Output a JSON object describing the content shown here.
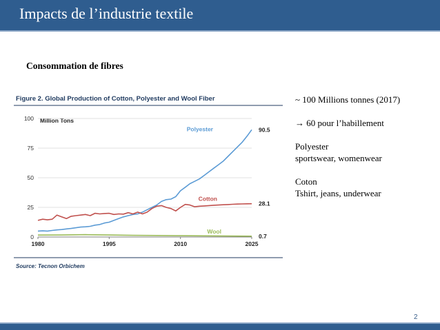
{
  "slide": {
    "title": "Impacts de l’industrie textile",
    "subtitle": "Consommation de fibres",
    "notes": [
      "~ 100 Millions tonnes (2017)",
      "→ 60 pour l’habillement",
      "Polyester",
      "sportswear, womenwear",
      "Coton",
      "Tshirt, jeans, underwear"
    ],
    "page_number": "2"
  },
  "colors": {
    "title_bar": "#2f5d8f",
    "polyester": "#5b9bd5",
    "cotton": "#c0504d",
    "wool": "#9bbb59"
  },
  "chart_data": {
    "type": "line",
    "title": "Figure 2. Global Production of Cotton, Polyester and Wool Fiber",
    "ylabel": "Million Tons",
    "source": "Source: Tecnon Orbichem",
    "xlim": [
      1980,
      2025
    ],
    "ylim": [
      0,
      100
    ],
    "xticks": [
      "1980",
      "1995",
      "2010",
      "2025"
    ],
    "yticks": [
      "0",
      "25",
      "50",
      "75",
      "100"
    ],
    "grid": true,
    "series": [
      {
        "name": "Polyester",
        "end_label": "90.5",
        "color": "#5b9bd5",
        "x": [
          1980,
          1981,
          1982,
          1983,
          1984,
          1985,
          1986,
          1987,
          1988,
          1989,
          1990,
          1991,
          1992,
          1993,
          1994,
          1995,
          1996,
          1997,
          1998,
          1999,
          2000,
          2001,
          2002,
          2003,
          2004,
          2005,
          2006,
          2007,
          2008,
          2009,
          2010,
          2011,
          2012,
          2013,
          2014,
          2015,
          2016,
          2017,
          2018,
          2019,
          2020,
          2021,
          2022,
          2023,
          2024,
          2025
        ],
        "y": [
          5,
          5.2,
          5,
          5.5,
          6,
          6.3,
          6.8,
          7.2,
          7.8,
          8.4,
          8.6,
          9,
          10,
          10.5,
          11.8,
          12.5,
          14,
          15.5,
          17,
          18,
          19,
          19.5,
          21,
          23,
          25,
          27,
          30,
          31.5,
          32,
          34,
          39,
          42,
          45,
          47,
          49,
          52,
          55,
          58,
          61,
          64,
          68,
          72,
          76,
          80,
          85,
          90.5
        ]
      },
      {
        "name": "Cotton",
        "end_label": "28.1",
        "color": "#c0504d",
        "x": [
          1980,
          1981,
          1982,
          1983,
          1984,
          1985,
          1986,
          1987,
          1988,
          1989,
          1990,
          1991,
          1992,
          1993,
          1994,
          1995,
          1996,
          1997,
          1998,
          1999,
          2000,
          2001,
          2002,
          2003,
          2004,
          2005,
          2006,
          2007,
          2008,
          2009,
          2010,
          2011,
          2012,
          2013,
          2014,
          2015,
          2016,
          2017,
          2018,
          2019,
          2020,
          2021,
          2022,
          2023,
          2024,
          2025
        ],
        "y": [
          14,
          15,
          14.5,
          15,
          18.5,
          17,
          15.5,
          17.5,
          18,
          18.5,
          19,
          18,
          20,
          19.5,
          19.8,
          20,
          19,
          19.5,
          19.3,
          20.5,
          19.5,
          21,
          19.5,
          21,
          24,
          26,
          26.5,
          25,
          24,
          22,
          25,
          27.5,
          27,
          25.5,
          26,
          26.2,
          26.5,
          26.8,
          27,
          27.2,
          27.4,
          27.6,
          27.8,
          27.9,
          28,
          28.1
        ]
      },
      {
        "name": "Wool",
        "end_label": "0.7",
        "color": "#9bbb59",
        "x": [
          1980,
          1985,
          1990,
          1995,
          2000,
          2005,
          2010,
          2015,
          2020,
          2025
        ],
        "y": [
          1.6,
          1.7,
          2.0,
          1.7,
          1.4,
          1.3,
          1.1,
          1.0,
          0.8,
          0.7
        ]
      }
    ]
  }
}
